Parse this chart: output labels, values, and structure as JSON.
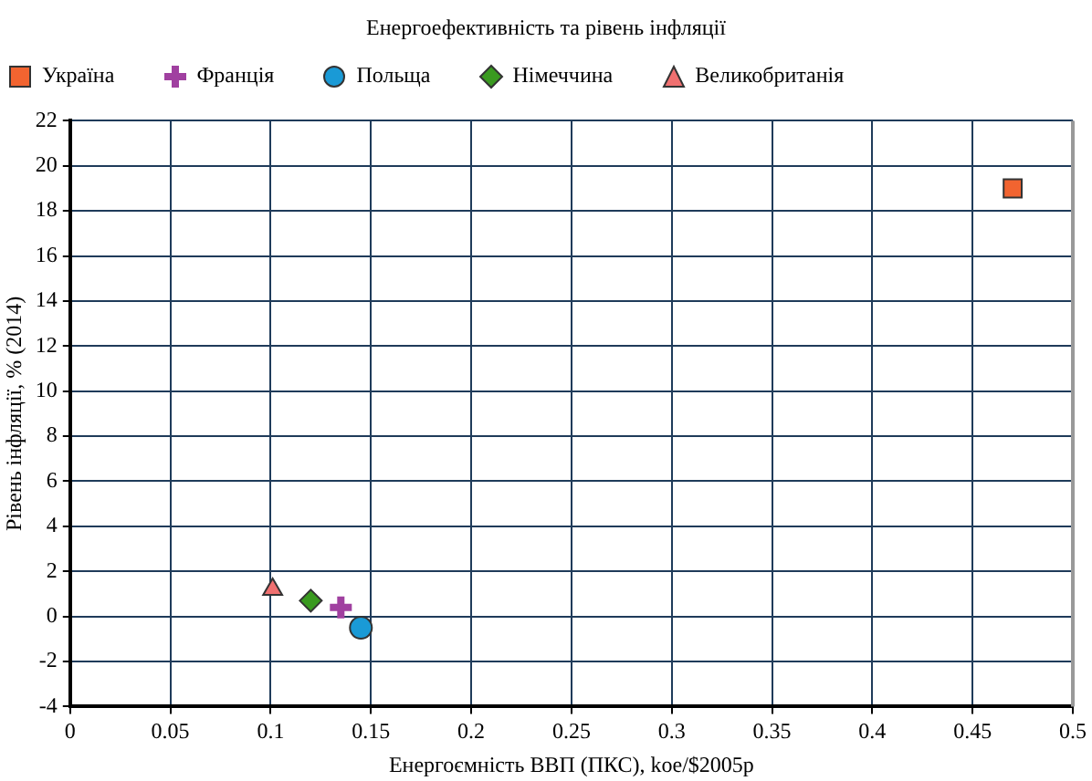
{
  "chart_data": {
    "type": "scatter",
    "title": "Енергоефективність та рівень інфляції",
    "xlabel": "Енергоємність ВВП (ПКС), koe/$2005p",
    "ylabel": "Рівень інфляції, % (2014)",
    "xlim": [
      0,
      0.5
    ],
    "xticks": [
      0,
      0.05,
      0.1,
      0.15,
      0.2,
      0.25,
      0.3,
      0.35,
      0.4,
      0.45,
      0.5
    ],
    "ylim": [
      -4,
      22
    ],
    "yticks": [
      -4,
      -2,
      0,
      2,
      4,
      6,
      8,
      10,
      12,
      14,
      16,
      18,
      20,
      22
    ],
    "grid": true,
    "legend": "top left",
    "series": [
      {
        "name": "Україна",
        "color": "#f26430",
        "marker": "square",
        "x": [
          0.47
        ],
        "values": [
          19.0
        ]
      },
      {
        "name": "Франція",
        "color": "#a040a0",
        "marker": "cross",
        "x": [
          0.135
        ],
        "values": [
          0.4
        ]
      },
      {
        "name": "Польща",
        "color": "#1a9ad6",
        "marker": "circle",
        "x": [
          0.145
        ],
        "values": [
          -0.5
        ]
      },
      {
        "name": "Німеччина",
        "color": "#3a9a20",
        "marker": "diamond",
        "x": [
          0.12
        ],
        "values": [
          0.7
        ]
      },
      {
        "name": "Великобританія",
        "color": "#f07070",
        "marker": "triangle",
        "x": [
          0.101
        ],
        "values": [
          1.2
        ]
      }
    ]
  }
}
